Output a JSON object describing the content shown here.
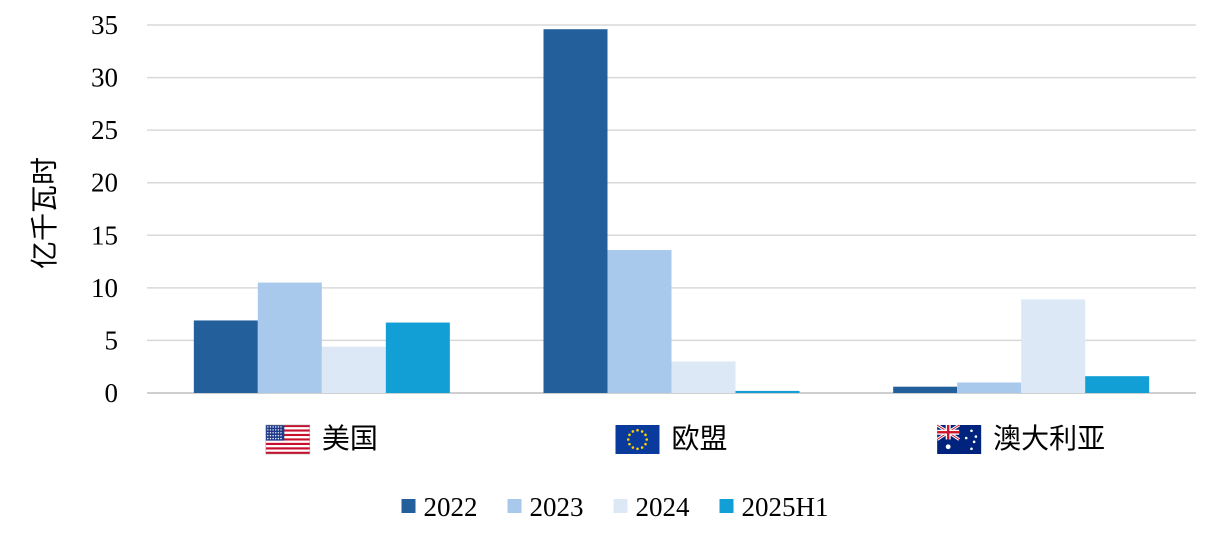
{
  "chart_data": {
    "type": "bar",
    "ylabel": "亿千瓦时",
    "ylim": [
      0,
      35
    ],
    "yticks": [
      0,
      5,
      10,
      15,
      20,
      25,
      30,
      35
    ],
    "categories": [
      "美国",
      "欧盟",
      "澳大利亚"
    ],
    "category_flags": [
      "us-flag-icon",
      "eu-flag-icon",
      "australia-flag-icon"
    ],
    "series": [
      {
        "name": "2022",
        "color": "#23609b",
        "values": [
          6.9,
          34.6,
          0.6
        ]
      },
      {
        "name": "2023",
        "color": "#a8c9eb",
        "values": [
          10.5,
          13.6,
          1.0
        ]
      },
      {
        "name": "2024",
        "color": "#dce8f5",
        "values": [
          4.4,
          3.0,
          8.9
        ]
      },
      {
        "name": "2025H1",
        "color": "#129fd6",
        "values": [
          6.7,
          0.2,
          1.6
        ]
      }
    ],
    "grid": true,
    "legend_position": "bottom"
  }
}
